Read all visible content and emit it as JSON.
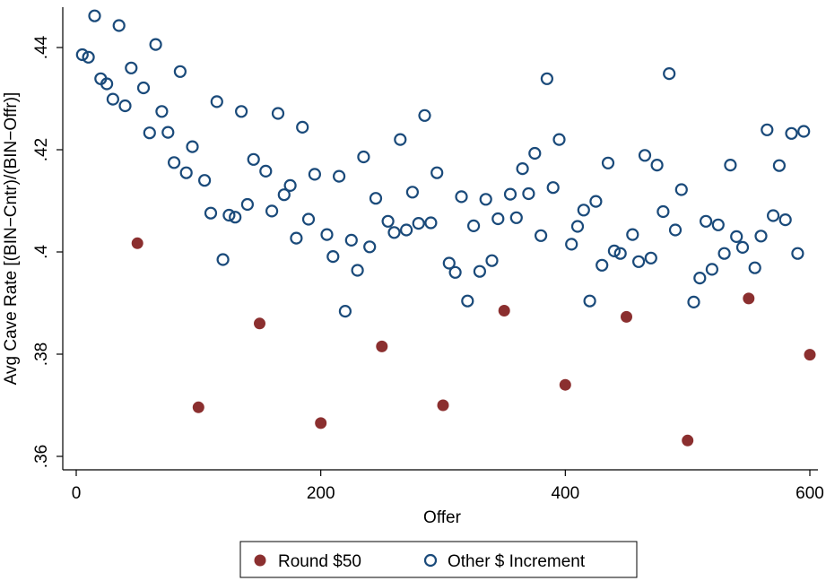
{
  "chart_data": {
    "type": "scatter",
    "xlabel": "Offer",
    "ylabel": "Avg Cave Rate [(BIN−Cntr)/(BIN−Offr)]",
    "xlim": [
      0,
      600
    ],
    "ylim": [
      0.36,
      0.44
    ],
    "xticks": [
      0,
      200,
      400,
      600
    ],
    "xtick_labels": [
      "0",
      "200",
      "400",
      "600"
    ],
    "yticks": [
      0.36,
      0.38,
      0.4,
      0.42,
      0.44
    ],
    "ytick_labels": [
      ".36",
      ".38",
      ".4",
      ".42",
      ".44"
    ],
    "grid": false,
    "legend_position": "bottom",
    "series": [
      {
        "name": "Round $50",
        "marker": "filled-circle",
        "color": "#8b2f2f",
        "points": [
          [
            50,
            0.4017
          ],
          [
            100,
            0.3696
          ],
          [
            150,
            0.386
          ],
          [
            200,
            0.3665
          ],
          [
            250,
            0.3815
          ],
          [
            300,
            0.37
          ],
          [
            350,
            0.3885
          ],
          [
            400,
            0.374
          ],
          [
            450,
            0.3873
          ],
          [
            500,
            0.3631
          ],
          [
            550,
            0.3909
          ],
          [
            600,
            0.3799
          ]
        ]
      },
      {
        "name": "Other $ Increment",
        "marker": "hollow-circle",
        "color": "#1a4a7a",
        "points": [
          [
            5,
            0.4386
          ],
          [
            10,
            0.4381
          ],
          [
            15,
            0.4462
          ],
          [
            20,
            0.4339
          ],
          [
            25,
            0.4329
          ],
          [
            30,
            0.4299
          ],
          [
            35,
            0.4443
          ],
          [
            40,
            0.4286
          ],
          [
            45,
            0.436
          ],
          [
            55,
            0.4321
          ],
          [
            60,
            0.4233
          ],
          [
            65,
            0.4406
          ],
          [
            70,
            0.4275
          ],
          [
            75,
            0.4234
          ],
          [
            80,
            0.4175
          ],
          [
            85,
            0.4353
          ],
          [
            90,
            0.4155
          ],
          [
            95,
            0.4206
          ],
          [
            105,
            0.414
          ],
          [
            110,
            0.4076
          ],
          [
            115,
            0.4294
          ],
          [
            120,
            0.3985
          ],
          [
            125,
            0.4072
          ],
          [
            130,
            0.4068
          ],
          [
            135,
            0.4275
          ],
          [
            140,
            0.4093
          ],
          [
            145,
            0.4181
          ],
          [
            155,
            0.4158
          ],
          [
            160,
            0.408
          ],
          [
            165,
            0.4271
          ],
          [
            170,
            0.4112
          ],
          [
            175,
            0.413
          ],
          [
            180,
            0.4027
          ],
          [
            185,
            0.4244
          ],
          [
            190,
            0.4064
          ],
          [
            195,
            0.4152
          ],
          [
            205,
            0.4034
          ],
          [
            210,
            0.3991
          ],
          [
            215,
            0.4148
          ],
          [
            220,
            0.3884
          ],
          [
            225,
            0.4023
          ],
          [
            230,
            0.3964
          ],
          [
            235,
            0.4186
          ],
          [
            240,
            0.401
          ],
          [
            245,
            0.4105
          ],
          [
            255,
            0.406
          ],
          [
            260,
            0.4038
          ],
          [
            265,
            0.422
          ],
          [
            270,
            0.4043
          ],
          [
            275,
            0.4117
          ],
          [
            280,
            0.4056
          ],
          [
            285,
            0.4267
          ],
          [
            290,
            0.4057
          ],
          [
            295,
            0.4155
          ],
          [
            305,
            0.3978
          ],
          [
            310,
            0.396
          ],
          [
            315,
            0.4108
          ],
          [
            320,
            0.3904
          ],
          [
            325,
            0.4051
          ],
          [
            330,
            0.3962
          ],
          [
            335,
            0.4103
          ],
          [
            340,
            0.3983
          ],
          [
            345,
            0.4065
          ],
          [
            355,
            0.4113
          ],
          [
            360,
            0.4067
          ],
          [
            365,
            0.4163
          ],
          [
            370,
            0.4114
          ],
          [
            375,
            0.4193
          ],
          [
            380,
            0.4032
          ],
          [
            385,
            0.4339
          ],
          [
            390,
            0.4126
          ],
          [
            395,
            0.422
          ],
          [
            405,
            0.4015
          ],
          [
            410,
            0.405
          ],
          [
            415,
            0.4082
          ],
          [
            420,
            0.3904
          ],
          [
            425,
            0.4099
          ],
          [
            430,
            0.3974
          ],
          [
            435,
            0.4174
          ],
          [
            440,
            0.4002
          ],
          [
            445,
            0.3997
          ],
          [
            455,
            0.4034
          ],
          [
            460,
            0.3981
          ],
          [
            465,
            0.4189
          ],
          [
            470,
            0.3988
          ],
          [
            475,
            0.417
          ],
          [
            480,
            0.4079
          ],
          [
            485,
            0.4349
          ],
          [
            490,
            0.4043
          ],
          [
            495,
            0.4122
          ],
          [
            505,
            0.3902
          ],
          [
            510,
            0.3949
          ],
          [
            515,
            0.406
          ],
          [
            520,
            0.3966
          ],
          [
            525,
            0.4053
          ],
          [
            530,
            0.3997
          ],
          [
            535,
            0.417
          ],
          [
            540,
            0.403
          ],
          [
            545,
            0.4009
          ],
          [
            555,
            0.3969
          ],
          [
            560,
            0.4031
          ],
          [
            565,
            0.4239
          ],
          [
            570,
            0.4071
          ],
          [
            575,
            0.4169
          ],
          [
            580,
            0.4063
          ],
          [
            585,
            0.4232
          ],
          [
            590,
            0.3997
          ],
          [
            595,
            0.4236
          ]
        ]
      }
    ]
  }
}
